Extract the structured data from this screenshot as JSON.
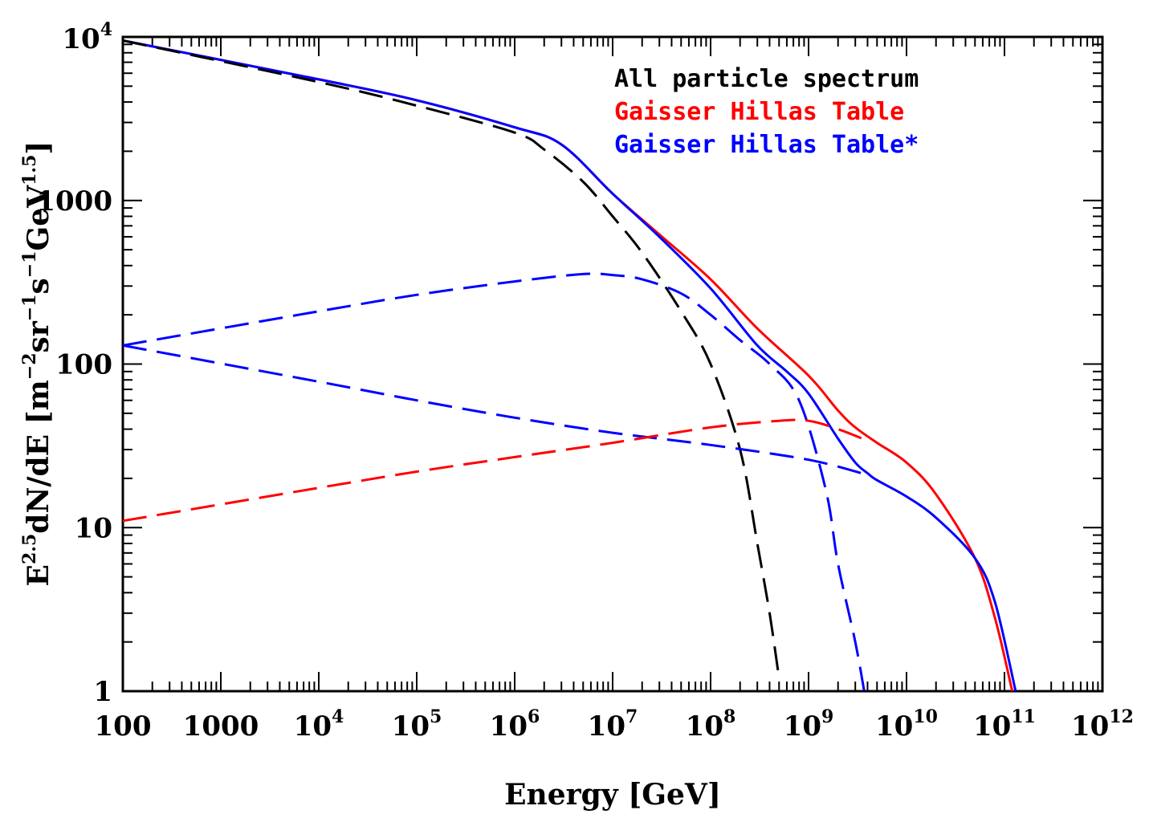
{
  "chart_data": {
    "type": "line",
    "xlabel": "Energy [GeV]",
    "ylabel": {
      "parts": [
        {
          "t": "E",
          "s": false
        },
        {
          "t": "2.5",
          "s": true
        },
        {
          "t": "dN/dE [m",
          "s": false
        },
        {
          "t": "−2",
          "s": true
        },
        {
          "t": "sr",
          "s": false
        },
        {
          "t": "−1",
          "s": true
        },
        {
          "t": "s",
          "s": false
        },
        {
          "t": "−1",
          "s": true
        },
        {
          "t": "GeV",
          "s": false
        },
        {
          "t": "1.5",
          "s": true
        },
        {
          "t": "]",
          "s": false
        }
      ]
    },
    "x_scale": "log",
    "y_scale": "log",
    "xlim": [
      100,
      1000000000000.0
    ],
    "ylim": [
      1,
      10000
    ],
    "grid": false,
    "legend_position": "top-right",
    "x_ticks": [
      {
        "value": 100,
        "base": "100",
        "exp": ""
      },
      {
        "value": 1000,
        "base": "1000",
        "exp": ""
      },
      {
        "value": 10000.0,
        "base": "10",
        "exp": "4"
      },
      {
        "value": 100000.0,
        "base": "10",
        "exp": "5"
      },
      {
        "value": 1000000.0,
        "base": "10",
        "exp": "6"
      },
      {
        "value": 10000000.0,
        "base": "10",
        "exp": "7"
      },
      {
        "value": 100000000.0,
        "base": "10",
        "exp": "8"
      },
      {
        "value": 1000000000.0,
        "base": "10",
        "exp": "9"
      },
      {
        "value": 10000000000.0,
        "base": "10",
        "exp": "10"
      },
      {
        "value": 100000000000.0,
        "base": "10",
        "exp": "11"
      },
      {
        "value": 1000000000000.0,
        "base": "10",
        "exp": "12"
      }
    ],
    "y_ticks": [
      {
        "value": 1,
        "base": "1",
        "exp": ""
      },
      {
        "value": 10,
        "base": "10",
        "exp": ""
      },
      {
        "value": 100,
        "base": "100",
        "exp": ""
      },
      {
        "value": 1000,
        "base": "1000",
        "exp": ""
      },
      {
        "value": 10000,
        "base": "10",
        "exp": "4"
      }
    ],
    "legend": [
      {
        "label": "All particle spectrum",
        "color": "#000000"
      },
      {
        "label": "Gaisser Hillas Table",
        "color": "#ff0000"
      },
      {
        "label": "Gaisser Hillas Table*",
        "color": "#0000ff"
      }
    ],
    "series": [
      {
        "color": "#ff0000",
        "dash": false,
        "x": [
          100,
          10000.0,
          100000.0,
          1000000.0,
          3000000.0,
          10000000.0,
          30000000.0,
          100000000.0,
          300000000.0,
          1000000000.0,
          2000000000.0,
          3000000000.0,
          5000000000.0,
          10000000000.0,
          20000000000.0,
          50000000000.0,
          80000000000.0,
          120000000000.0
        ],
        "y": [
          9500,
          5500,
          4100,
          2800,
          2200,
          1100,
          620,
          330,
          165,
          85,
          52,
          41,
          33,
          25,
          16,
          6.5,
          2.8,
          1
        ]
      },
      {
        "color": "#0000ff",
        "dash": false,
        "x": [
          100,
          10000.0,
          100000.0,
          1000000.0,
          3000000.0,
          10000000.0,
          30000000.0,
          100000000.0,
          300000000.0,
          600000000.0,
          1000000000.0,
          2000000000.0,
          3000000000.0,
          4000000000.0,
          5000000000.0,
          10000000000.0,
          20000000000.0,
          50000000000.0,
          80000000000.0,
          130000000000.0
        ],
        "y": [
          9500,
          5500,
          4100,
          2800,
          2200,
          1100,
          600,
          290,
          130,
          90,
          66,
          35,
          25,
          21.5,
          19.5,
          15.5,
          11.5,
          6.5,
          3.5,
          1
        ]
      },
      {
        "color": "#000000",
        "dash": true,
        "x": [
          100,
          10000.0,
          100000.0,
          1000000.0,
          2000000.0,
          5000000.0,
          10000000.0,
          20000000.0,
          50000000.0,
          100000000.0,
          200000000.0,
          300000000.0,
          400000000.0,
          500000000.0
        ],
        "y": [
          9500,
          5300,
          3800,
          2600,
          2050,
          1300,
          800,
          480,
          210,
          100,
          30,
          8,
          3,
          1.2
        ]
      },
      {
        "color": "#0000ff",
        "dash": true,
        "x": [
          100,
          10000.0,
          100000.0,
          1000000.0,
          5000000.0,
          10000000.0,
          20000000.0,
          50000000.0,
          100000000.0,
          200000000.0,
          400000000.0,
          800000000.0,
          1500000000.0,
          2000000000.0,
          3000000000.0,
          3700000000.0
        ],
        "y": [
          130,
          210,
          265,
          320,
          355,
          350,
          330,
          270,
          200,
          140,
          100,
          60,
          17,
          6,
          2,
          1
        ]
      },
      {
        "color": "#0000ff",
        "dash": true,
        "x": [
          100,
          10000.0,
          100000.0,
          1000000.0,
          10000000.0,
          100000000.0,
          1000000000.0,
          4000000000.0
        ],
        "y": [
          130,
          78,
          60,
          47,
          38,
          32,
          26,
          21
        ]
      },
      {
        "color": "#ff0000",
        "dash": true,
        "x": [
          100,
          10000.0,
          100000.0,
          1000000.0,
          10000000.0,
          100000000.0,
          500000000.0,
          1000000000.0,
          2000000000.0,
          4000000000.0
        ],
        "y": [
          11,
          17.5,
          22,
          27,
          33,
          41,
          45,
          45,
          40,
          34
        ]
      }
    ]
  }
}
